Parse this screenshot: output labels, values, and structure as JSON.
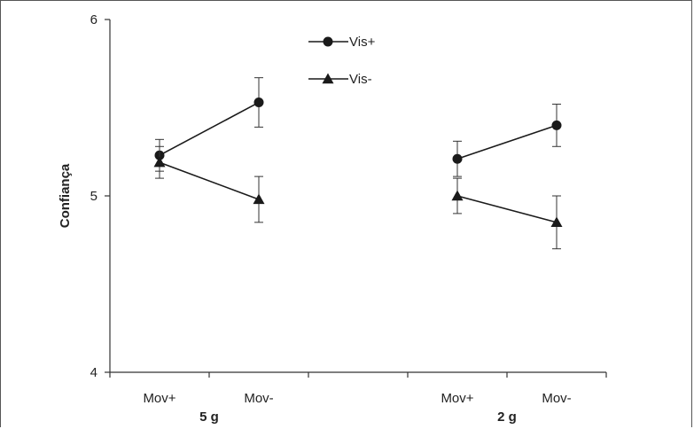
{
  "chart_data": {
    "type": "line",
    "ylabel": "Confiança",
    "ylim": [
      4,
      6
    ],
    "yticks": [
      "4",
      "5",
      "6"
    ],
    "legend_position": "top-center",
    "groups": [
      {
        "label": "5 g",
        "categories": [
          "Mov+",
          "Mov-"
        ]
      },
      {
        "label": "2 g",
        "categories": [
          "Mov+",
          "Mov-"
        ]
      }
    ],
    "series": [
      {
        "name": "Vis+",
        "marker": "circle",
        "color": "#1a1a1a",
        "groups": [
          {
            "values": [
              5.23,
              5.53
            ],
            "errors": [
              0.09,
              0.14
            ]
          },
          {
            "values": [
              5.21,
              5.4
            ],
            "errors": [
              0.1,
              0.12
            ]
          }
        ]
      },
      {
        "name": "Vis-",
        "marker": "triangle",
        "color": "#1a1a1a",
        "groups": [
          {
            "values": [
              5.19,
              4.98
            ],
            "errors": [
              0.09,
              0.13
            ]
          },
          {
            "values": [
              5.0,
              4.85
            ],
            "errors": [
              0.1,
              0.15
            ]
          }
        ]
      }
    ]
  }
}
